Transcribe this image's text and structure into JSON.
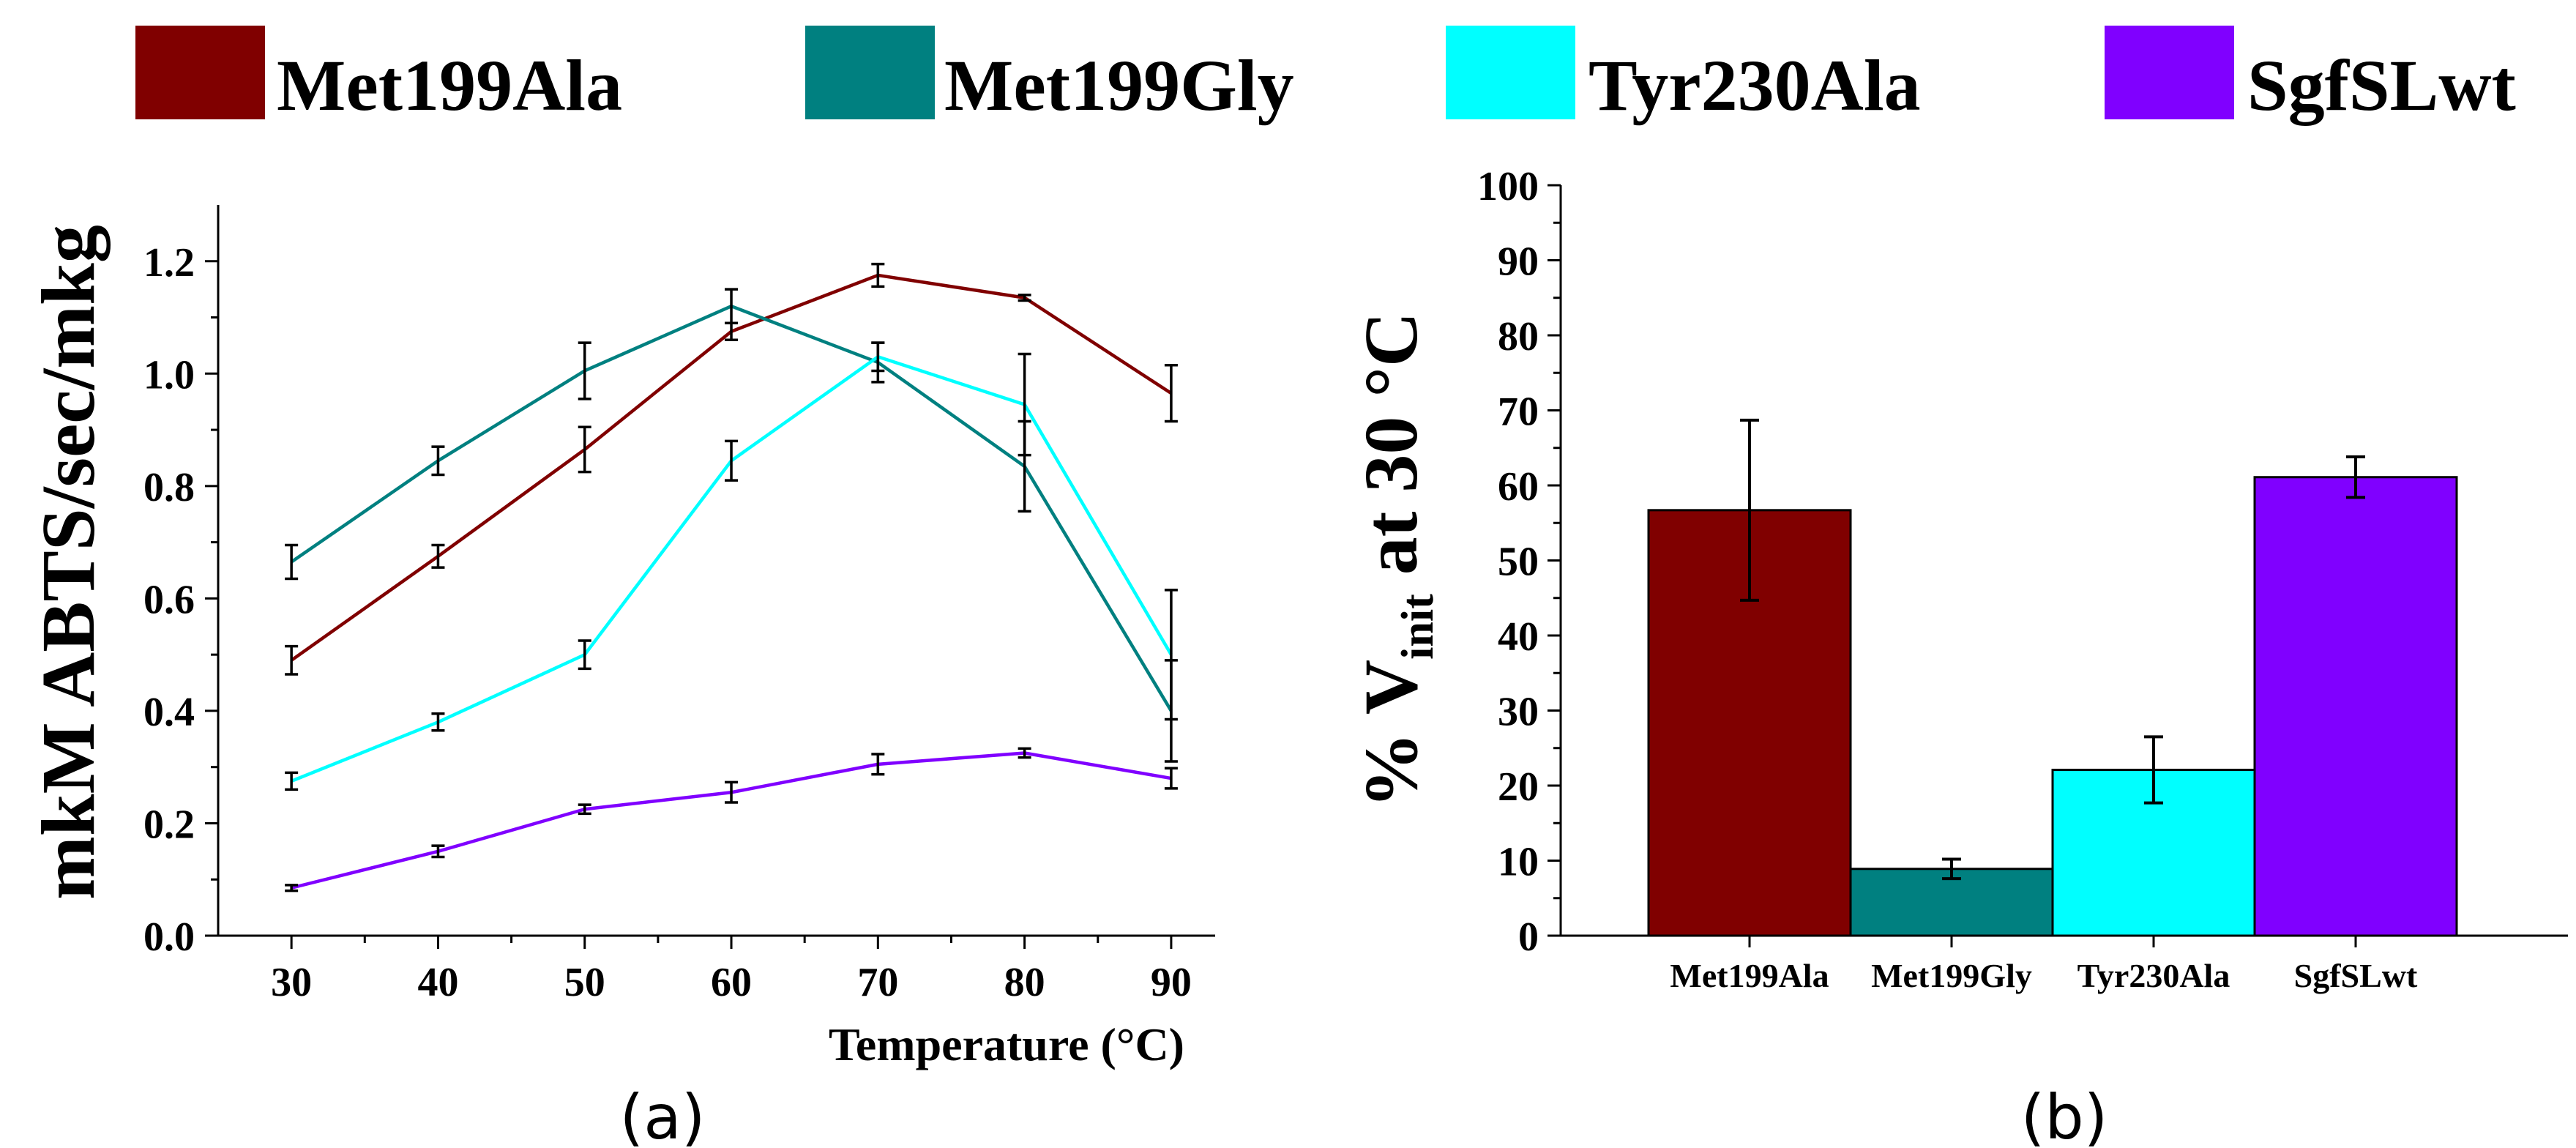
{
  "legend": [
    {
      "label": "Met199Ala",
      "color": "#800000"
    },
    {
      "label": "Met199Gly",
      "color": "#008080"
    },
    {
      "label": "Tyr230Ala",
      "color": "#00FFFF"
    },
    {
      "label": "SgfSLwt",
      "color": "#8000FF"
    }
  ],
  "chart_data": [
    {
      "type": "line",
      "panel_label": "(a)",
      "xlabel": "Temperature (°C)",
      "ylabel": "mkM ABTS/sec/mkg",
      "x": [
        30,
        40,
        50,
        60,
        70,
        80,
        90
      ],
      "xticks": [
        "30",
        "40",
        "50",
        "60",
        "70",
        "80",
        "90"
      ],
      "xlim": [
        25,
        93
      ],
      "ylim": [
        0,
        1.3
      ],
      "yticks": [
        "0.0",
        "0.2",
        "0.4",
        "0.6",
        "0.8",
        "1.0",
        "1.2"
      ],
      "grid": false,
      "series": [
        {
          "name": "Met199Ala",
          "color": "#800000",
          "values": [
            0.49,
            0.675,
            0.865,
            1.075,
            1.175,
            1.135,
            0.965
          ],
          "errors": [
            0.025,
            0.02,
            0.04,
            0.015,
            0.02,
            0.005,
            0.05
          ]
        },
        {
          "name": "Met199Gly",
          "color": "#008080",
          "values": [
            0.665,
            0.845,
            1.005,
            1.12,
            1.02,
            0.835,
            0.4
          ],
          "errors": [
            0.03,
            0.025,
            0.05,
            0.03,
            0.035,
            0.08,
            0.09
          ]
        },
        {
          "name": "Tyr230Ala",
          "color": "#00FFFF",
          "values": [
            0.275,
            0.38,
            0.5,
            0.845,
            1.03,
            0.945,
            0.5
          ],
          "errors": [
            0.015,
            0.015,
            0.025,
            0.035,
            0.025,
            0.09,
            0.115
          ]
        },
        {
          "name": "SgfSLwt",
          "color": "#8000FF",
          "values": [
            0.085,
            0.15,
            0.225,
            0.255,
            0.305,
            0.325,
            0.28
          ],
          "errors": [
            0.005,
            0.01,
            0.008,
            0.018,
            0.018,
            0.008,
            0.018
          ]
        }
      ]
    },
    {
      "type": "bar",
      "panel_label": "(b)",
      "ylabel_main": "% V",
      "ylabel_sub": "init",
      "ylabel_tail": " at 30 °C",
      "categories": [
        "Met199Ala",
        "Met199Gly",
        "Tyr230Ala",
        "SgfSLwt"
      ],
      "values": [
        56.7,
        8.9,
        22.1,
        61.1
      ],
      "errors": [
        12.0,
        1.3,
        4.4,
        2.7
      ],
      "colors": [
        "#800000",
        "#008080",
        "#00FFFF",
        "#8000FF"
      ],
      "ylim": [
        0,
        100
      ],
      "yticks": [
        "0",
        "10",
        "20",
        "30",
        "40",
        "50",
        "60",
        "70",
        "80",
        "90",
        "100"
      ],
      "grid": false
    }
  ]
}
